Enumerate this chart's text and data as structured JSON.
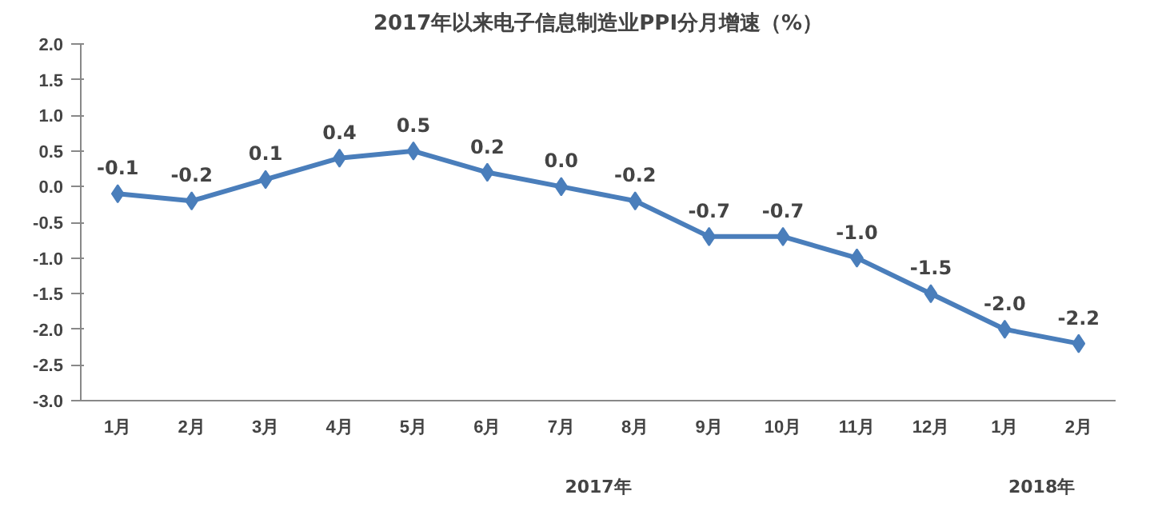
{
  "chart_data": {
    "type": "line",
    "title": "2017年以来电子信息制造业PPI分月增速（%）",
    "categories": [
      "1月",
      "2月",
      "3月",
      "4月",
      "5月",
      "6月",
      "7月",
      "8月",
      "9月",
      "10月",
      "11月",
      "12月",
      "1月",
      "2月"
    ],
    "series": [
      {
        "color": "#4a7ebb",
        "values": [
          -0.1,
          -0.2,
          0.1,
          0.4,
          0.5,
          0.2,
          0.0,
          -0.2,
          -0.7,
          -0.7,
          -1.0,
          -1.5,
          -2.0,
          -2.2
        ],
        "value_labels": [
          "-0.1",
          "-0.2",
          "0.1",
          "0.4",
          "0.5",
          "0.2",
          "0.0",
          "-0.2",
          "-0.7",
          "-0.7",
          "-1.0",
          "-1.5",
          "-2.0",
          "-2.2"
        ]
      }
    ],
    "ylim": [
      -3.0,
      2.0
    ],
    "yticks": [
      {
        "value": -3.0,
        "label": "-3.0"
      },
      {
        "value": -2.5,
        "label": "-2.5"
      },
      {
        "value": -2.0,
        "label": "-2.0"
      },
      {
        "value": -1.5,
        "label": "-1.5"
      },
      {
        "value": -1.0,
        "label": "-1.0"
      },
      {
        "value": -0.5,
        "label": "-0.5"
      },
      {
        "value": 0,
        "label": "0.0"
      },
      {
        "value": 0.5,
        "label": "0.5"
      },
      {
        "value": 1.0,
        "label": "1.0"
      },
      {
        "value": 1.5,
        "label": "1.5"
      },
      {
        "value": 2.0,
        "label": "2.0"
      }
    ],
    "annotations": [
      "2017年",
      "2018年"
    ],
    "marker": "diamond",
    "line_style": "solid",
    "grid": false
  }
}
